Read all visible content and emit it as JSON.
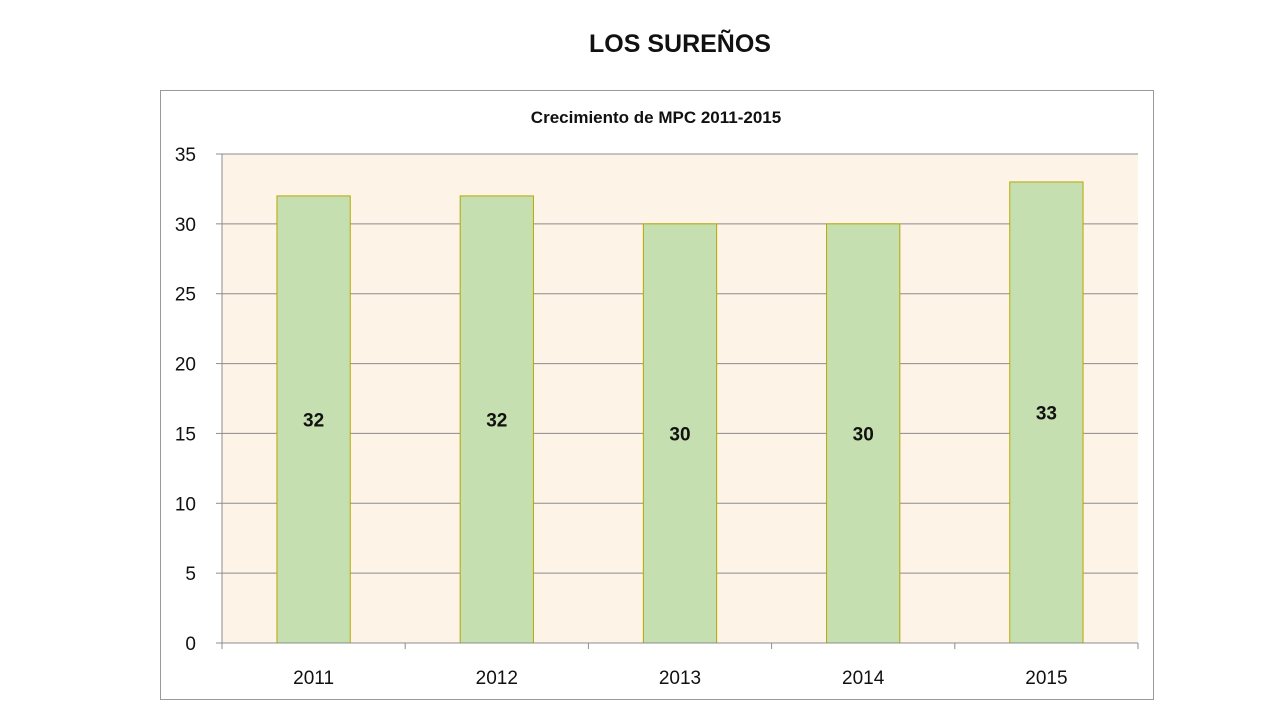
{
  "slide": {
    "title": "LOS SUREÑOS"
  },
  "chart_data": {
    "type": "bar",
    "title": "Crecimiento de MPC 2011-2015",
    "xlabel": "",
    "ylabel": "",
    "categories": [
      "2011",
      "2012",
      "2013",
      "2014",
      "2015"
    ],
    "values": [
      32,
      32,
      30,
      30,
      33
    ],
    "ylim": [
      0,
      35
    ],
    "yticks": [
      0,
      5,
      10,
      15,
      20,
      25,
      30,
      35
    ],
    "grid": true,
    "legend": "none",
    "data_labels": true,
    "colors": {
      "bar_fill": "#c6dfb0",
      "bar_stroke": "#b5a800",
      "plot_background": "#fdf3e7",
      "gridline": "#8c8c8c"
    }
  }
}
